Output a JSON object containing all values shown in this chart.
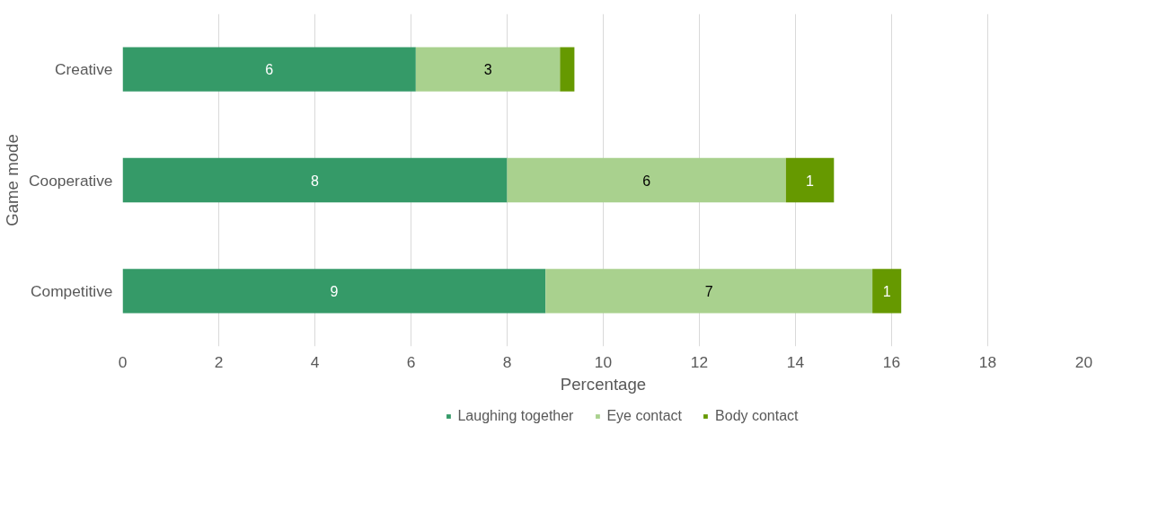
{
  "chart_data": {
    "type": "bar",
    "orientation": "horizontal",
    "stacked": true,
    "categories": [
      "Creative",
      "Cooperative",
      "Competitive"
    ],
    "xlabel": "Percentage",
    "ylabel": "Game mode",
    "xlim": [
      0,
      20
    ],
    "xticks": [
      0,
      2,
      4,
      6,
      8,
      10,
      12,
      14,
      16,
      18,
      20
    ],
    "grid": "x",
    "legend": "bottom",
    "series": [
      {
        "name": "Laughing together",
        "color": "#359a68",
        "values": [
          6.1,
          8.0,
          8.8
        ],
        "value_labels": [
          "6",
          "8",
          "9"
        ]
      },
      {
        "name": "Eye contact",
        "color": "#a9d18e",
        "values": [
          3.0,
          5.8,
          6.8
        ],
        "value_labels": [
          "3",
          "6",
          "7"
        ]
      },
      {
        "name": "Body contact",
        "color": "#669900",
        "values": [
          0.3,
          1.0,
          0.6
        ],
        "value_labels": [
          null,
          "1",
          "1"
        ]
      }
    ]
  }
}
